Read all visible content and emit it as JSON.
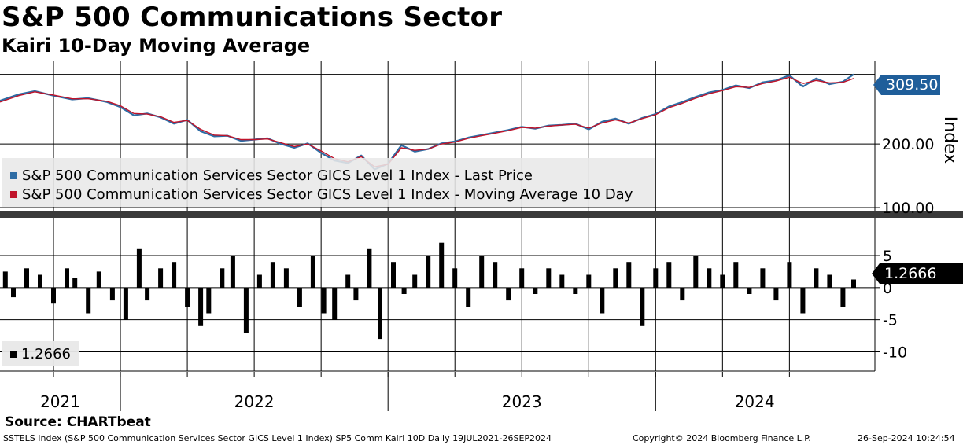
{
  "title": "S&P 500 Communications Sector",
  "subtitle": "Kairi 10-Day Moving Average",
  "source": "Source: CHARTbeat",
  "footer": {
    "left": "SSTELS Index (S&P 500 Communication Services Sector GICS Level 1 Index) SP5 Comm Kairi 10D  Daily 19JUL2021-26SEP2024",
    "middle": "Copyright© 2024 Bloomberg Finance L.P.",
    "right": "26-Sep-2024 10:24:54"
  },
  "colors": {
    "last_price": "#2e6ca4",
    "moving_average": "#c0142b",
    "kairi": "#000000",
    "tag_blue": "#1f5e9a"
  },
  "chart_data": [
    {
      "type": "line",
      "title": "S&P 500 Communications Sector",
      "ylabel": "Index",
      "ylim": [
        100,
        330
      ],
      "yticks": [
        100,
        200
      ],
      "ytick_labels": [
        "100.00",
        "200.00"
      ],
      "last_value_label": "309.50",
      "x_start": 2021.55,
      "x_end": 2024.74,
      "x_year_ticks": [
        2022,
        2023,
        2024
      ],
      "x_labels": [
        "2021",
        "2022",
        "2023",
        "2024"
      ],
      "grid": true,
      "series": [
        {
          "name": "S&P 500 Communication Services Sector GICS Level 1 Index - Last Price",
          "x": [
            2021.55,
            2021.62,
            2021.68,
            2021.75,
            2021.82,
            2021.88,
            2021.95,
            2022.0,
            2022.05,
            2022.1,
            2022.15,
            2022.2,
            2022.25,
            2022.3,
            2022.35,
            2022.4,
            2022.45,
            2022.5,
            2022.55,
            2022.6,
            2022.65,
            2022.7,
            2022.75,
            2022.8,
            2022.85,
            2022.9,
            2022.95,
            2023.0,
            2023.05,
            2023.1,
            2023.15,
            2023.2,
            2023.25,
            2023.3,
            2023.35,
            2023.4,
            2023.45,
            2023.5,
            2023.55,
            2023.6,
            2023.65,
            2023.7,
            2023.75,
            2023.8,
            2023.85,
            2023.9,
            2023.95,
            2024.0,
            2024.05,
            2024.1,
            2024.15,
            2024.2,
            2024.25,
            2024.3,
            2024.35,
            2024.4,
            2024.45,
            2024.5,
            2024.55,
            2024.6,
            2024.65,
            2024.7,
            2024.74
          ],
          "values": [
            268,
            278,
            283,
            276,
            270,
            272,
            266,
            258,
            245,
            248,
            242,
            232,
            238,
            220,
            212,
            213,
            205,
            207,
            209,
            200,
            194,
            201,
            186,
            174,
            170,
            182,
            160,
            169,
            198,
            188,
            192,
            201,
            204,
            210,
            214,
            218,
            222,
            227,
            224,
            229,
            230,
            232,
            223,
            235,
            240,
            232,
            241,
            247,
            259,
            266,
            274,
            281,
            285,
            292,
            288,
            297,
            300,
            308,
            290,
            303,
            294,
            298,
            309.5
          ]
        },
        {
          "name": "S&P 500 Communication Services Sector GICS Level 1 Index - Moving Average 10 Day",
          "x": [
            2021.55,
            2021.62,
            2021.68,
            2021.75,
            2021.82,
            2021.88,
            2021.95,
            2022.0,
            2022.05,
            2022.1,
            2022.15,
            2022.2,
            2022.25,
            2022.3,
            2022.35,
            2022.4,
            2022.45,
            2022.5,
            2022.55,
            2022.6,
            2022.65,
            2022.7,
            2022.75,
            2022.8,
            2022.85,
            2022.9,
            2022.95,
            2023.0,
            2023.05,
            2023.1,
            2023.15,
            2023.2,
            2023.25,
            2023.3,
            2023.35,
            2023.4,
            2023.45,
            2023.5,
            2023.55,
            2023.6,
            2023.65,
            2023.7,
            2023.75,
            2023.8,
            2023.85,
            2023.9,
            2023.95,
            2024.0,
            2024.05,
            2024.1,
            2024.15,
            2024.2,
            2024.25,
            2024.3,
            2024.35,
            2024.4,
            2024.45,
            2024.5,
            2024.55,
            2024.6,
            2024.65,
            2024.7,
            2024.74
          ],
          "values": [
            266,
            276,
            282,
            277,
            271,
            271,
            267,
            260,
            248,
            247,
            243,
            234,
            237,
            223,
            214,
            213,
            207,
            207,
            208,
            202,
            196,
            200,
            189,
            177,
            172,
            180,
            164,
            168,
            194,
            190,
            192,
            200,
            203,
            209,
            213,
            217,
            221,
            226,
            225,
            228,
            230,
            231,
            225,
            233,
            238,
            233,
            240,
            246,
            257,
            264,
            272,
            279,
            284,
            290,
            289,
            295,
            299,
            305,
            295,
            300,
            296,
            297,
            303
          ]
        }
      ]
    },
    {
      "type": "bar",
      "title": "Kairi 10-Day Moving Average",
      "ylim": [
        -13,
        11
      ],
      "yticks": [
        5,
        0,
        -5,
        -10
      ],
      "ytick_labels": [
        "5",
        "0",
        "-5",
        "-10"
      ],
      "last_value_label": "1.2666",
      "legend_label": "1.2666",
      "series": [
        {
          "name": "Kairi 10D",
          "x": [
            2021.57,
            2021.6,
            2021.65,
            2021.7,
            2021.75,
            2021.8,
            2021.83,
            2021.88,
            2021.92,
            2021.97,
            2022.02,
            2022.07,
            2022.1,
            2022.15,
            2022.2,
            2022.25,
            2022.3,
            2022.33,
            2022.38,
            2022.42,
            2022.47,
            2022.52,
            2022.57,
            2022.62,
            2022.67,
            2022.72,
            2022.76,
            2022.8,
            2022.85,
            2022.88,
            2022.93,
            2022.97,
            2023.02,
            2023.06,
            2023.1,
            2023.15,
            2023.2,
            2023.25,
            2023.3,
            2023.35,
            2023.4,
            2023.45,
            2023.5,
            2023.55,
            2023.6,
            2023.65,
            2023.7,
            2023.75,
            2023.8,
            2023.85,
            2023.9,
            2023.95,
            2024.0,
            2024.05,
            2024.1,
            2024.15,
            2024.2,
            2024.25,
            2024.3,
            2024.35,
            2024.4,
            2024.45,
            2024.5,
            2024.55,
            2024.6,
            2024.65,
            2024.7,
            2024.74
          ],
          "values": [
            2.5,
            -1.5,
            3,
            2,
            -2.5,
            3,
            1.5,
            -4,
            2.5,
            -2,
            -5,
            6,
            -2,
            3,
            4,
            -3,
            -6,
            -4,
            3,
            5,
            -7,
            2,
            4,
            3,
            -3,
            5,
            -4,
            -5,
            2,
            -2,
            6,
            -8,
            4,
            -1,
            2,
            5,
            7,
            3,
            -3,
            5,
            4,
            -2,
            3,
            -1,
            3,
            2,
            -1,
            2,
            -4,
            3,
            4,
            -6,
            3,
            4,
            -2,
            5,
            3,
            2,
            4,
            -1,
            3,
            -2,
            4,
            -4,
            3,
            2,
            -3,
            1.2666
          ]
        }
      ]
    }
  ]
}
